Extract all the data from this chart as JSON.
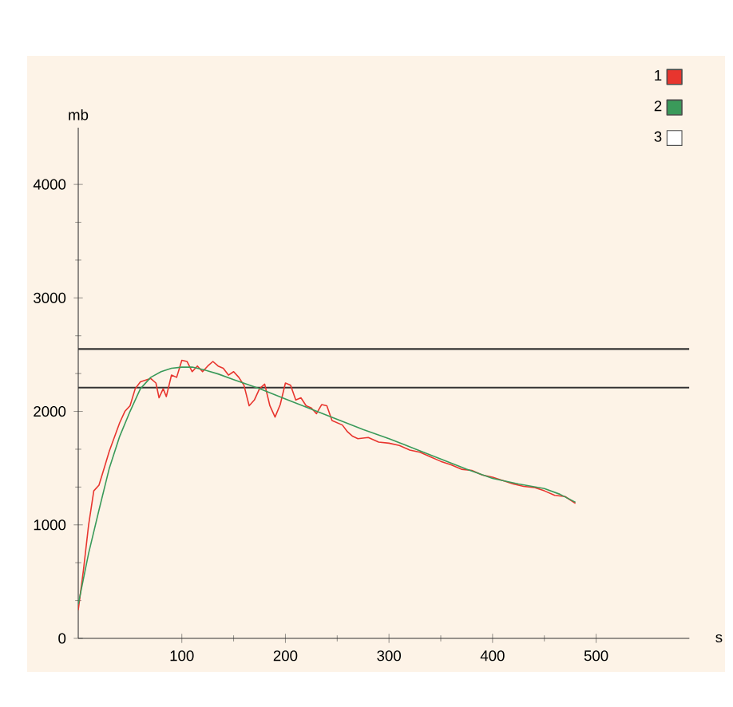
{
  "chart_data": {
    "type": "line",
    "xlabel": "s",
    "ylabel": "mb",
    "xlim": [
      0,
      590
    ],
    "ylim": [
      0,
      4500
    ],
    "xticks": [
      100,
      200,
      300,
      400,
      500
    ],
    "yticks": [
      0,
      1000,
      2000,
      3000,
      4000
    ],
    "grid": false,
    "legend": "top right",
    "marker": "none",
    "line_style": "solid",
    "ref_lines": [
      {
        "axis": "y",
        "value": 2550,
        "color": "#333333"
      },
      {
        "axis": "y",
        "value": 2210,
        "color": "#333333"
      }
    ],
    "series": [
      {
        "name": "1",
        "color": "#e8352e",
        "x": [
          0,
          5,
          10,
          15,
          20,
          25,
          30,
          40,
          45,
          50,
          55,
          60,
          70,
          75,
          78,
          82,
          85,
          90,
          95,
          100,
          105,
          110,
          115,
          120,
          125,
          130,
          135,
          140,
          145,
          150,
          155,
          160,
          165,
          170,
          175,
          180,
          185,
          190,
          195,
          200,
          205,
          210,
          215,
          220,
          225,
          230,
          235,
          240,
          245,
          250,
          255,
          260,
          265,
          270,
          280,
          290,
          300,
          310,
          320,
          330,
          340,
          350,
          360,
          370,
          380,
          390,
          400,
          410,
          420,
          430,
          440,
          450,
          460,
          470,
          480
        ],
        "values": [
          250,
          600,
          1000,
          1300,
          1350,
          1500,
          1650,
          1900,
          2000,
          2050,
          2200,
          2260,
          2290,
          2250,
          2120,
          2200,
          2130,
          2320,
          2300,
          2450,
          2440,
          2350,
          2400,
          2350,
          2400,
          2440,
          2400,
          2380,
          2320,
          2350,
          2300,
          2230,
          2050,
          2100,
          2200,
          2240,
          2050,
          1950,
          2060,
          2250,
          2230,
          2100,
          2120,
          2050,
          2030,
          1980,
          2060,
          2050,
          1920,
          1900,
          1880,
          1820,
          1780,
          1760,
          1770,
          1730,
          1720,
          1700,
          1660,
          1640,
          1600,
          1560,
          1530,
          1490,
          1480,
          1440,
          1420,
          1390,
          1360,
          1340,
          1330,
          1300,
          1260,
          1250,
          1190
        ]
      },
      {
        "name": "2",
        "color": "#3a9a5a",
        "x": [
          0,
          10,
          20,
          30,
          40,
          50,
          60,
          70,
          80,
          90,
          100,
          110,
          120,
          135,
          150,
          175,
          200,
          225,
          250,
          275,
          300,
          325,
          350,
          375,
          400,
          425,
          450,
          465,
          480
        ],
        "values": [
          300,
          750,
          1130,
          1500,
          1780,
          2000,
          2200,
          2300,
          2350,
          2380,
          2390,
          2390,
          2370,
          2330,
          2280,
          2200,
          2110,
          2020,
          1930,
          1840,
          1760,
          1670,
          1580,
          1490,
          1410,
          1360,
          1320,
          1270,
          1200
        ]
      },
      {
        "name": "3",
        "color": "#ffffff"
      }
    ]
  }
}
